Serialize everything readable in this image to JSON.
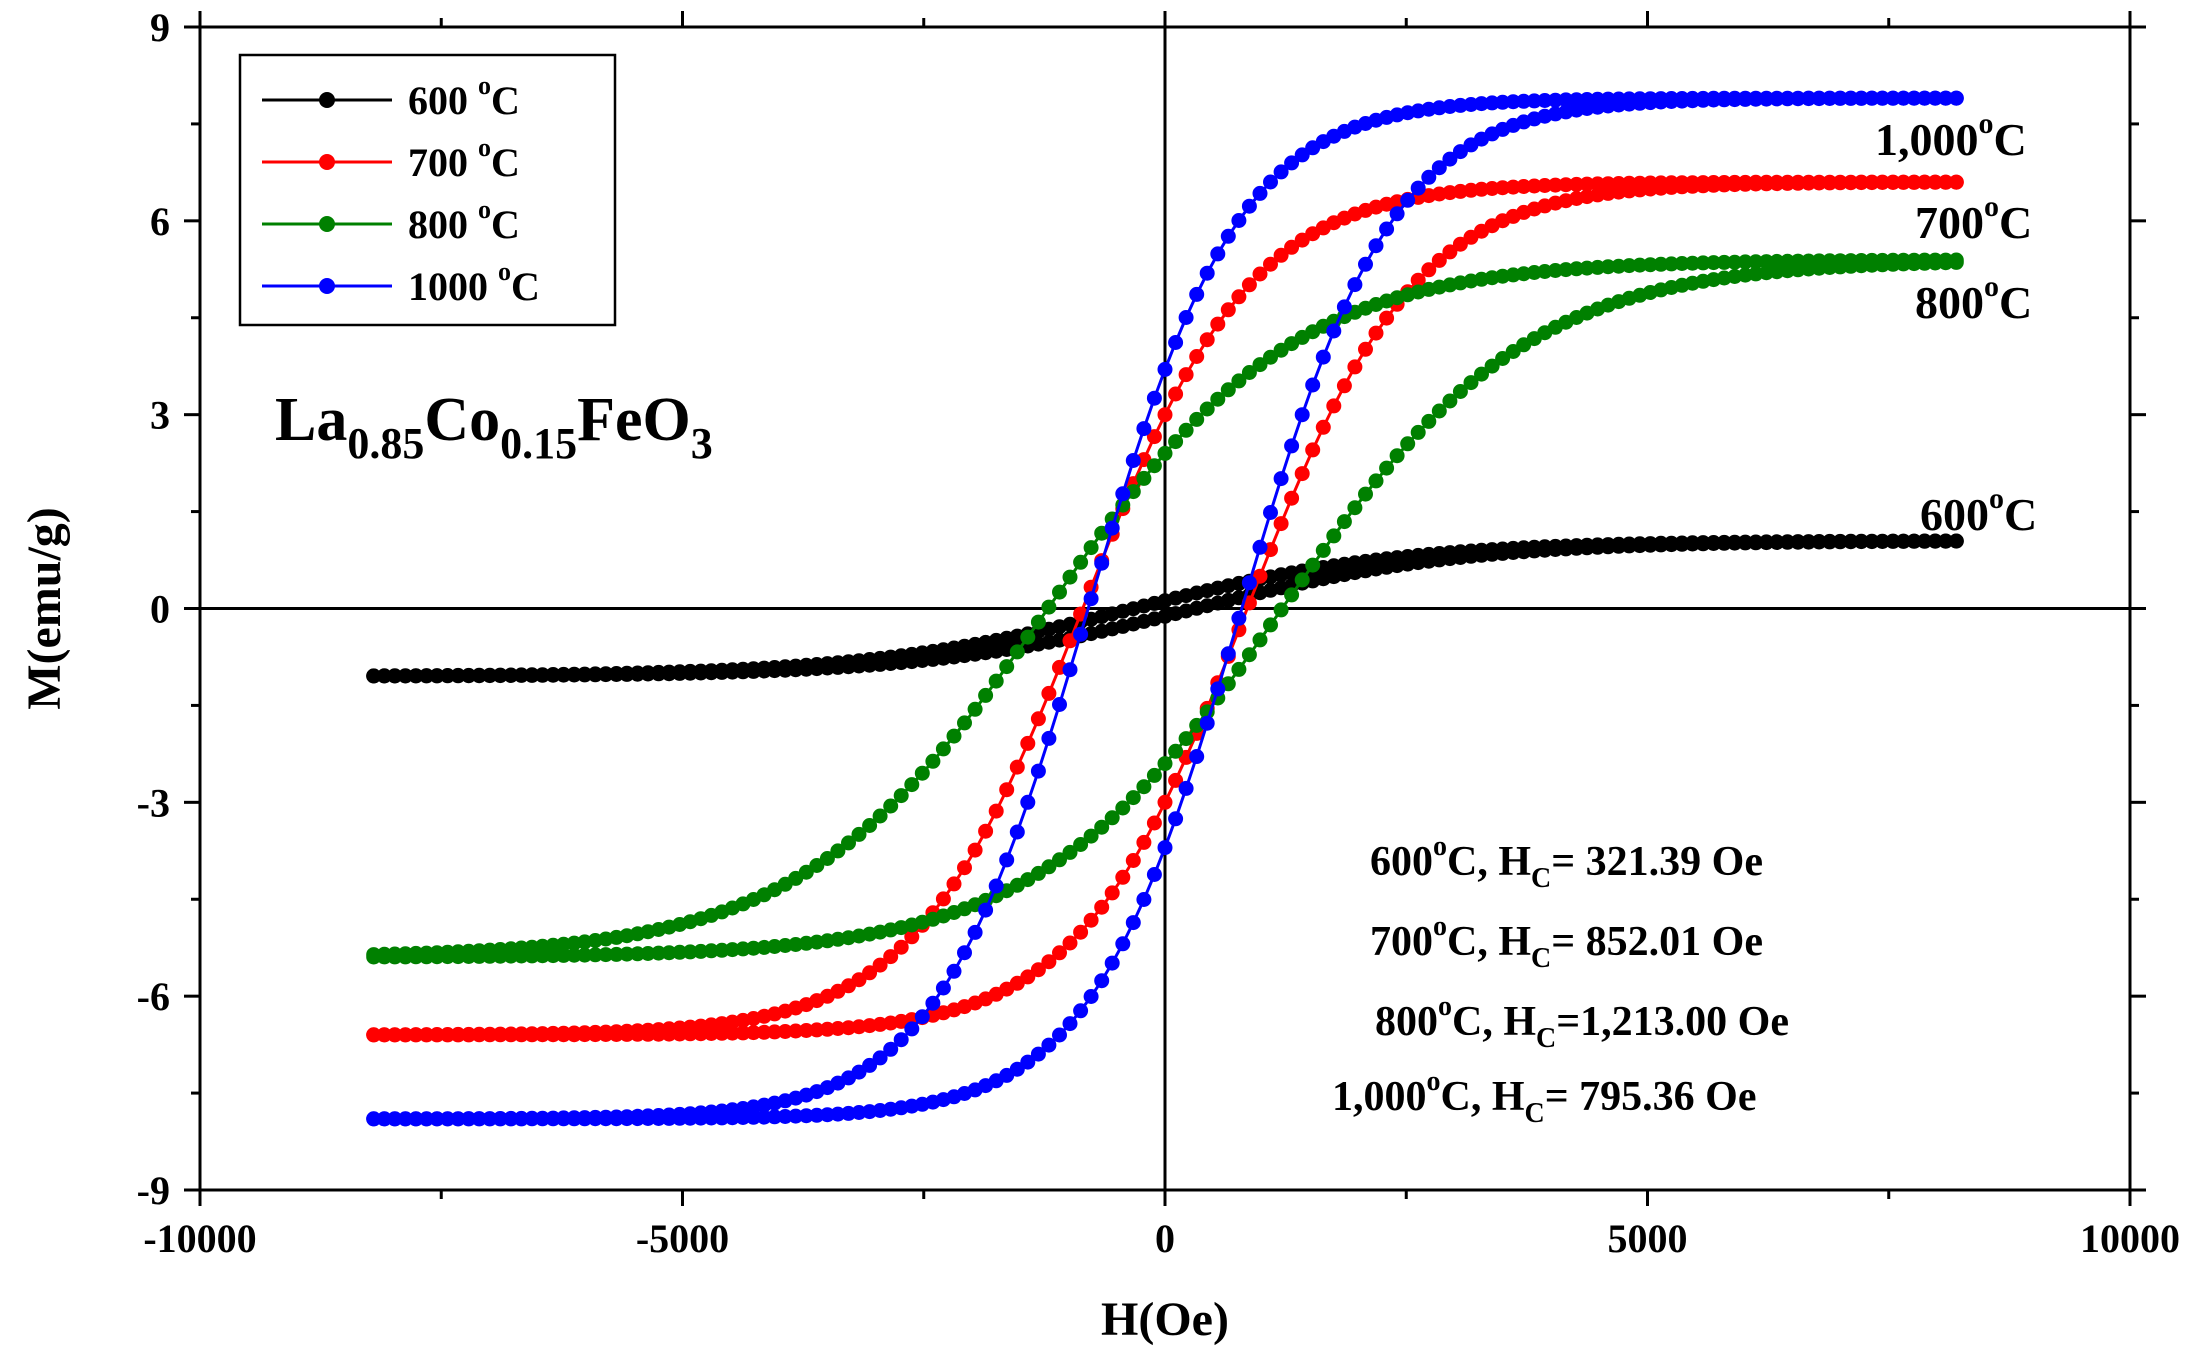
{
  "chart_data": {
    "type": "line",
    "title": "",
    "formula": {
      "parts": [
        {
          "text": "La",
          "sub": false
        },
        {
          "text": "0.85",
          "sub": true
        },
        {
          "text": "Co",
          "sub": false
        },
        {
          "text": "0.15",
          "sub": true
        },
        {
          "text": "FeO",
          "sub": false
        },
        {
          "text": "3",
          "sub": true
        }
      ]
    },
    "xlabel": "H(Oe)",
    "ylabel": "M(emu/g)",
    "xlim": [
      -10000,
      10000
    ],
    "ylim": [
      -9,
      9
    ],
    "xticks": [
      -10000,
      -5000,
      0,
      5000,
      10000
    ],
    "xtick_labels": [
      "-10000",
      "-5000",
      "0",
      "5000",
      "10000"
    ],
    "yticks": [
      -9,
      -6,
      -3,
      0,
      3,
      6,
      9
    ],
    "ytick_labels": [
      "-9",
      "-6",
      "-3",
      "0",
      "3",
      "6",
      "9"
    ],
    "legend_position": "top-left",
    "series": [
      {
        "name": "600 °C",
        "legend_main": "600 ",
        "legend_sup": "o",
        "legend_tail": "C",
        "color": "#000000",
        "curve_label_main": "600",
        "curve_label_sup": "o",
        "curve_label_tail": "C",
        "Ms": 1.05,
        "Mr": 0.12,
        "Hc": 321.39,
        "Hmax": 8200,
        "k": 0.00028
      },
      {
        "name": "700 °C",
        "legend_main": "700 ",
        "legend_sup": "o",
        "legend_tail": "C",
        "color": "#ff0000",
        "curve_label_main": "700",
        "curve_label_sup": "o",
        "curve_label_tail": "C",
        "Ms": 6.6,
        "Mr": 3.0,
        "Hc": 852.01,
        "Hmax": 8200,
        "k": 0.00062
      },
      {
        "name": "800 °C",
        "legend_main": "800 ",
        "legend_sup": "o",
        "legend_tail": "C",
        "color": "#008000",
        "curve_label_main": "800",
        "curve_label_sup": "o",
        "curve_label_tail": "C",
        "Ms": 5.4,
        "Mr": 2.4,
        "Hc": 1213.0,
        "Hmax": 8200,
        "k": 0.00045
      },
      {
        "name": "1000 °C",
        "legend_main": "1000 ",
        "legend_sup": "o",
        "legend_tail": "C",
        "color": "#0000ff",
        "curve_label_main": "1,000",
        "curve_label_sup": "o",
        "curve_label_tail": "C",
        "Ms": 7.9,
        "Mr": 3.7,
        "Hc": 795.36,
        "Hmax": 8200,
        "k": 0.00058
      }
    ],
    "annotations": [
      {
        "temp": "600",
        "sup": "o",
        "tail": "C,",
        "h": "H",
        "sub": "C",
        "value": "= 321.39 Oe"
      },
      {
        "temp": "700",
        "sup": "o",
        "tail": "C,",
        "h": "H",
        "sub": "C",
        "value": "= 852.01 Oe"
      },
      {
        "temp": "800",
        "sup": "o",
        "tail": "C,",
        "h": "H",
        "sub": "C",
        "value": "=1,213.00 Oe"
      },
      {
        "temp": "1,000",
        "sup": "o",
        "tail": "C,",
        "h": "H",
        "sub": "C",
        "value": "= 795.36 Oe"
      }
    ],
    "grid": false
  }
}
